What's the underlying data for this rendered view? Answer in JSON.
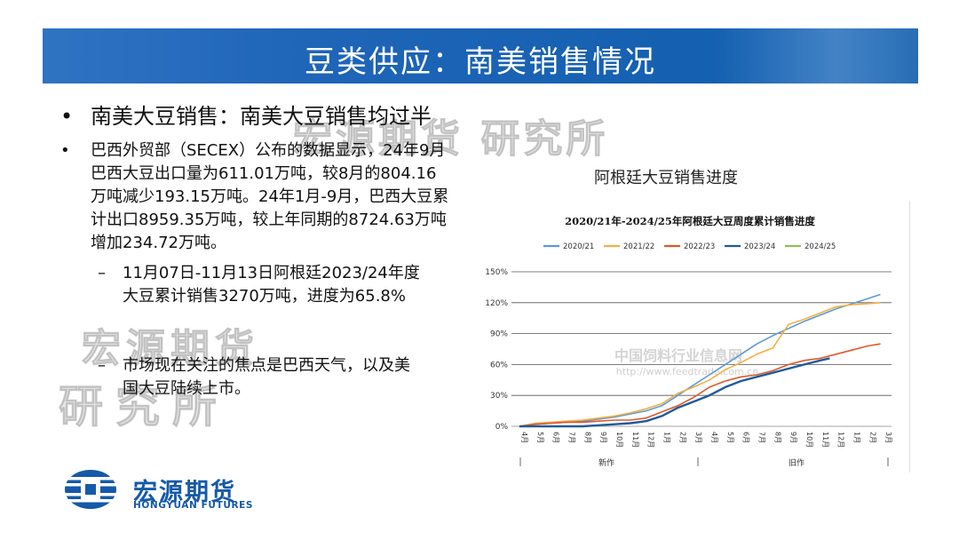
{
  "header": {
    "title": "豆类供应：南美销售情况"
  },
  "watermarks": [
    "宏源期货 研究所",
    "宏源期货",
    "研究所"
  ],
  "bullets": {
    "b1": {
      "marker": "•",
      "text": "南美大豆销售：南美大豆销售均过半"
    },
    "b2": {
      "marker": "•",
      "text": "巴西外贸部（SECEX）公布的数据显示，24年9月巴西大豆出口量为611.01万吨，较8月的804.16万吨减少193.15万吨。24年1月-9月，巴西大豆累计出口8959.35万吨，较上年同期的8724.63万吨增加234.72万吨。"
    },
    "sub1": {
      "marker": "–",
      "text": "11月07日-11月13日阿根廷2023/24年度大豆累计销售3270万吨，进度为65.8%"
    },
    "sub2": {
      "marker": "–",
      "text": "市场现在关注的焦点是巴西天气，以及美国大豆陆续上市。"
    }
  },
  "logo": {
    "cn": "宏源期货",
    "en": "HONGYUAN FUTURES"
  },
  "chart_caption": "阿根廷大豆销售进度",
  "chart_watermark": {
    "cn": "中国饲料行业信息网",
    "url": "http://www.feedtrade.com.cn"
  },
  "chart_data": {
    "type": "line",
    "title": "2020/21年-2024/25年阿根廷大豆周度累计销售进度",
    "ylim": [
      0,
      150
    ],
    "y_ticks": [
      "0%",
      "30%",
      "60%",
      "90%",
      "120%",
      "150%"
    ],
    "y_tick_values": [
      0,
      30,
      60,
      90,
      120,
      150
    ],
    "x_labels": [
      "4月",
      "5月",
      "6月",
      "7月",
      "8月",
      "9月",
      "10月",
      "11月",
      "12月",
      "1月",
      "2月",
      "3月",
      "4月",
      "5月",
      "6月",
      "7月",
      "8月",
      "9月",
      "10月",
      "11月",
      "12月",
      "1月",
      "2月",
      "3月"
    ],
    "x_groups": [
      "新作",
      "旧作"
    ],
    "grid": true,
    "legend_position": "top",
    "series": [
      {
        "name": "2020/21",
        "color": "#5b9bd5",
        "width": 1.6,
        "x": [
          1,
          2,
          3,
          4,
          5,
          6,
          7,
          8,
          9,
          10,
          11,
          12,
          13,
          14,
          15,
          16,
          17,
          18,
          19,
          20,
          21,
          22,
          23,
          23.8
        ],
        "values": [
          0,
          2,
          3,
          4,
          5,
          7,
          9,
          12,
          15,
          20,
          30,
          40,
          50,
          60,
          70,
          80,
          88,
          95,
          102,
          108,
          114,
          119,
          124,
          128
        ]
      },
      {
        "name": "2021/22",
        "color": "#f4b042",
        "width": 1.6,
        "x": [
          1,
          2,
          3,
          4,
          5,
          6,
          7,
          8,
          9,
          10,
          11,
          12,
          13,
          14,
          15,
          16,
          17,
          18,
          19,
          20,
          21,
          22,
          23,
          23.8
        ],
        "values": [
          0,
          3,
          4,
          5,
          6,
          8,
          10,
          13,
          17,
          22,
          32,
          38,
          45,
          55,
          62,
          70,
          76,
          99,
          104,
          110,
          116,
          118,
          119,
          120
        ]
      },
      {
        "name": "2022/23",
        "color": "#e0582a",
        "width": 1.6,
        "x": [
          1,
          2,
          3,
          4,
          5,
          6,
          7,
          8,
          9,
          10,
          11,
          12,
          13,
          14,
          15,
          16,
          17,
          18,
          19,
          20,
          21,
          22,
          23,
          23.8
        ],
        "values": [
          0,
          2,
          3,
          4,
          4,
          5,
          6,
          6,
          8,
          14,
          20,
          28,
          38,
          44,
          48,
          50,
          54,
          60,
          64,
          66,
          70,
          74,
          78,
          80
        ]
      },
      {
        "name": "2023/24",
        "color": "#1f5b9c",
        "width": 2.4,
        "x": [
          1,
          2,
          3,
          4,
          5,
          6,
          7,
          8,
          9,
          10,
          11,
          12,
          13,
          14,
          15,
          16,
          17,
          18,
          19,
          20,
          20.6
        ],
        "values": [
          0,
          0,
          0,
          0,
          0,
          1,
          2,
          3,
          5,
          10,
          18,
          24,
          30,
          38,
          44,
          48,
          52,
          56,
          60,
          64,
          66
        ]
      },
      {
        "name": "2024/25",
        "color": "#9bbb59",
        "width": 1.6,
        "x": [],
        "values": []
      }
    ]
  }
}
